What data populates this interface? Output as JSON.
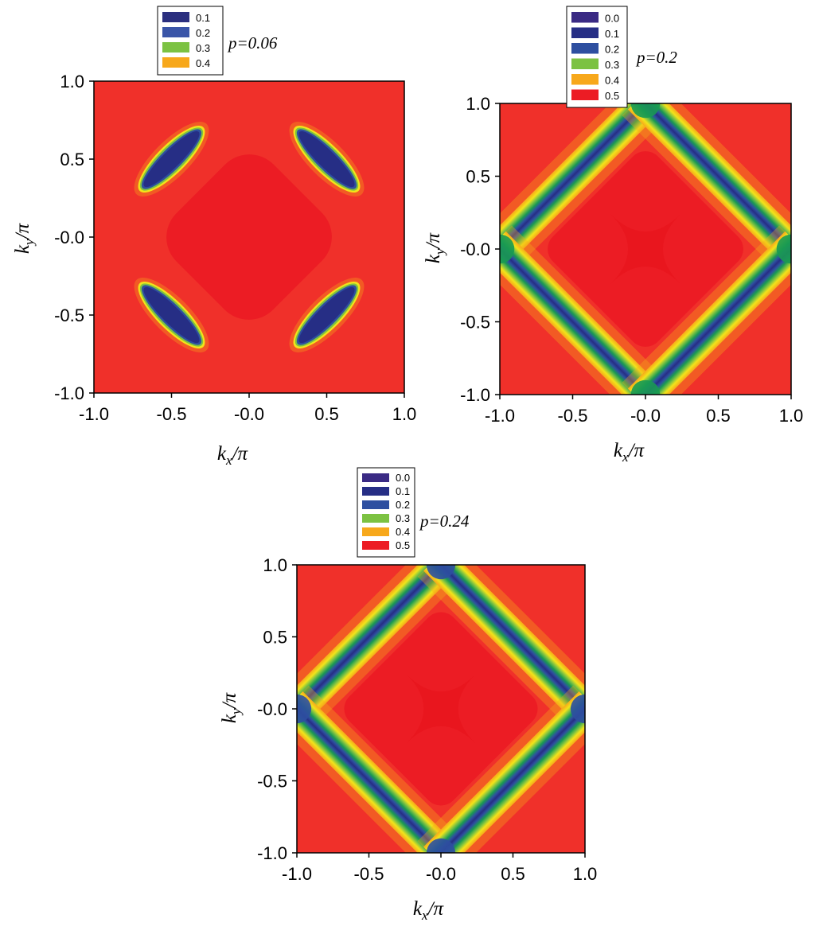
{
  "chart_data": [
    {
      "type": "heatmap",
      "annotation": "p=0.06",
      "xlabel": {
        "main": "k",
        "sub": "x",
        "rest": "/π"
      },
      "ylabel": {
        "main": "k",
        "sub": "y",
        "rest": "/π"
      },
      "xlim": [
        -1.0,
        1.0
      ],
      "ylim": [
        -1.0,
        1.0
      ],
      "xticks": [
        "-1.0",
        "-0.5",
        "-0.0",
        "0.5",
        "1.0"
      ],
      "yticks": [
        "-1.0",
        "-0.5",
        "-0.0",
        "0.5",
        "1.0"
      ],
      "grid": false,
      "legend_position": "top-left",
      "legend": [
        {
          "label": "0.1",
          "color": "#2b2f7f"
        },
        {
          "label": "0.2",
          "color": "#3a55a8"
        },
        {
          "label": "0.3",
          "color": "#7cc242"
        },
        {
          "label": "0.4",
          "color": "#f7a81b"
        }
      ],
      "pattern": "pockets",
      "max_value": 0.5,
      "colors": {
        "background": "#f0302a",
        "center": "#ec1c24"
      }
    },
    {
      "type": "heatmap",
      "annotation": "p=0.2",
      "xlabel": {
        "main": "k",
        "sub": "x",
        "rest": "/π"
      },
      "ylabel": {
        "main": "k",
        "sub": "y",
        "rest": "/π"
      },
      "xlim": [
        -1.0,
        1.0
      ],
      "ylim": [
        -1.0,
        1.0
      ],
      "xticks": [
        "-1.0",
        "-0.5",
        "-0.0",
        "0.5",
        "1.0"
      ],
      "yticks": [
        "-1.0",
        "-0.5",
        "-0.0",
        "0.5",
        "1.0"
      ],
      "grid": false,
      "legend_position": "top-left",
      "legend": [
        {
          "label": "0.0",
          "color": "#3a2a84"
        },
        {
          "label": "0.1",
          "color": "#262e85"
        },
        {
          "label": "0.2",
          "color": "#2e4fa0"
        },
        {
          "label": "0.3",
          "color": "#7cc242"
        },
        {
          "label": "0.4",
          "color": "#f7a81b"
        },
        {
          "label": "0.5",
          "color": "#ec1c24"
        }
      ],
      "pattern": "diamond",
      "max_value": 0.5,
      "colors": {
        "background": "#f0302a",
        "center": "#ec1c24",
        "junction": "#1a9a52"
      }
    },
    {
      "type": "heatmap",
      "annotation": "p=0.24",
      "xlabel": {
        "main": "k",
        "sub": "x",
        "rest": "/π"
      },
      "ylabel": {
        "main": "k",
        "sub": "y",
        "rest": "/π"
      },
      "xlim": [
        -1.0,
        1.0
      ],
      "ylim": [
        -1.0,
        1.0
      ],
      "xticks": [
        "-1.0",
        "-0.5",
        "-0.0",
        "0.5",
        "1.0"
      ],
      "yticks": [
        "-1.0",
        "-0.5",
        "-0.0",
        "0.5",
        "1.0"
      ],
      "grid": false,
      "legend_position": "top-left",
      "legend": [
        {
          "label": "0.0",
          "color": "#3a2a84"
        },
        {
          "label": "0.1",
          "color": "#262e85"
        },
        {
          "label": "0.2",
          "color": "#2e4fa0"
        },
        {
          "label": "0.3",
          "color": "#7cc242"
        },
        {
          "label": "0.4",
          "color": "#f7a81b"
        },
        {
          "label": "0.5",
          "color": "#ec1c24"
        }
      ],
      "pattern": "diamond",
      "max_value": 0.5,
      "colors": {
        "background": "#f0302a",
        "center": "#ec1c24",
        "junction": "#2e4fa0"
      }
    }
  ]
}
